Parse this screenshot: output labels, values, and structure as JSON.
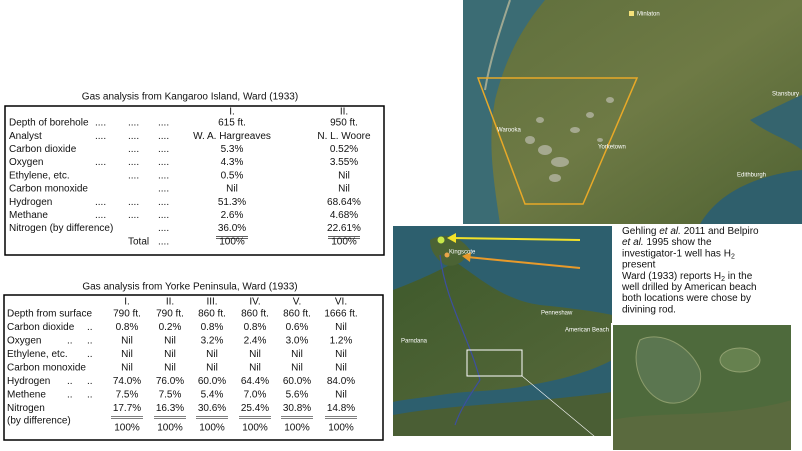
{
  "kangaroo_table": {
    "title": "Gas analysis from Kangaroo Island, Ward (1933)",
    "headers": [
      "I.",
      "II."
    ],
    "rows": [
      {
        "label": "Depth of borehole",
        "dots": [
          "....",
          "....",
          "...."
        ],
        "values": [
          "615 ft.",
          "950 ft."
        ]
      },
      {
        "label": "Analyst",
        "dots": [
          "....",
          "....",
          "...."
        ],
        "values": [
          "W. A. Hargreaves",
          "N. L. Woore"
        ]
      },
      {
        "label": "Carbon dioxide",
        "dots": [
          "....",
          "...."
        ],
        "values": [
          "5.3%",
          "0.52%"
        ]
      },
      {
        "label": "Oxygen",
        "dots": [
          "....",
          "....",
          "...."
        ],
        "values": [
          "4.3%",
          "3.55%"
        ]
      },
      {
        "label": "Ethylene, etc.",
        "dots": [
          "....",
          "...."
        ],
        "values": [
          "0.5%",
          "Nil"
        ]
      },
      {
        "label": "Carbon monoxide",
        "dots": [
          "...."
        ],
        "values": [
          "Nil",
          "Nil"
        ]
      },
      {
        "label": "Hydrogen",
        "dots": [
          "....",
          "....",
          "...."
        ],
        "values": [
          "51.3%",
          "68.64%"
        ]
      },
      {
        "label": "Methane",
        "dots": [
          "....",
          "....",
          "...."
        ],
        "values": [
          "2.6%",
          "4.68%"
        ]
      },
      {
        "label": "Nitrogen (by difference)",
        "dots": [
          "...."
        ],
        "values": [
          "36.0%",
          "22.61%"
        ]
      }
    ],
    "total": {
      "label": "Total",
      "dots": [
        "...."
      ],
      "values": [
        "100%",
        "100%"
      ]
    }
  },
  "yorke_table": {
    "title": "Gas analysis from Yorke Peninsula, Ward (1933)",
    "headers": [
      "I.",
      "II.",
      "III.",
      "IV.",
      "V.",
      "VI."
    ],
    "rows": [
      {
        "label": "Depth from surface",
        "values": [
          "790 ft.",
          "790 ft.",
          "860 ft.",
          "860 ft.",
          "860 ft.",
          "1666 ft."
        ]
      },
      {
        "label": "Carbon dioxide",
        "dots": [
          ".."
        ],
        "values": [
          "0.8%",
          "0.2%",
          "0.8%",
          "0.8%",
          "0.6%",
          "Nil"
        ]
      },
      {
        "label": "Oxygen",
        "dots": [
          "..",
          ".."
        ],
        "values": [
          "Nil",
          "Nil",
          "3.2%",
          "2.4%",
          "3.0%",
          "1.2%"
        ]
      },
      {
        "label": "Ethylene, etc.",
        "dots": [
          ".."
        ],
        "values": [
          "Nil",
          "Nil",
          "Nil",
          "Nil",
          "Nil",
          "Nil"
        ]
      },
      {
        "label": "Carbon monoxide",
        "values": [
          "Nil",
          "Nil",
          "Nil",
          "Nil",
          "Nil",
          "Nil"
        ]
      },
      {
        "label": "Hydrogen",
        "dots": [
          "..",
          ".."
        ],
        "values": [
          "74.0%",
          "76.0%",
          "60.0%",
          "64.4%",
          "60.0%",
          "84.0%"
        ]
      },
      {
        "label": "Methene",
        "dots": [
          "..",
          ".."
        ],
        "values": [
          "7.5%",
          "7.5%",
          "5.4%",
          "7.0%",
          "5.6%",
          "Nil"
        ]
      },
      {
        "label": "Nitrogen",
        "values": [
          "17.7%",
          "16.3%",
          "30.6%",
          "25.4%",
          "30.8%",
          "14.8%"
        ]
      }
    ],
    "total": {
      "label": "(by difference)",
      "values": [
        "100%",
        "100%",
        "100%",
        "100%",
        "100%",
        "100%"
      ]
    }
  },
  "map_labels": {
    "yorke": [
      "Minlaton",
      "Stansbury",
      "Yorketown",
      "Edithburgh",
      "Warooka"
    ],
    "kangaroo": [
      "Kingscote",
      "Penneshaw",
      "American Beach",
      "Parndana"
    ]
  },
  "annotation": {
    "lines": [
      [
        {
          "text": "Gehling "
        },
        {
          "text": "et al.",
          "italic": true
        },
        {
          "text": " 2011 and Belpiro"
        }
      ],
      [
        {
          "text": "et al.",
          "italic": true
        },
        {
          "text": " 1995 show the"
        }
      ],
      [
        {
          "text": "investigator-1 well has H"
        },
        {
          "text": "2",
          "sub": true
        }
      ],
      [
        {
          "text": "present"
        }
      ],
      [
        {
          "text": "Ward (1933) reports H"
        },
        {
          "text": "2",
          "sub": true
        },
        {
          "text": " in the"
        }
      ],
      [
        {
          "text": "well drilled by American beach"
        }
      ],
      [
        {
          "text": "both locations were chose by"
        }
      ],
      [
        {
          "text": "divining rod."
        }
      ]
    ]
  }
}
